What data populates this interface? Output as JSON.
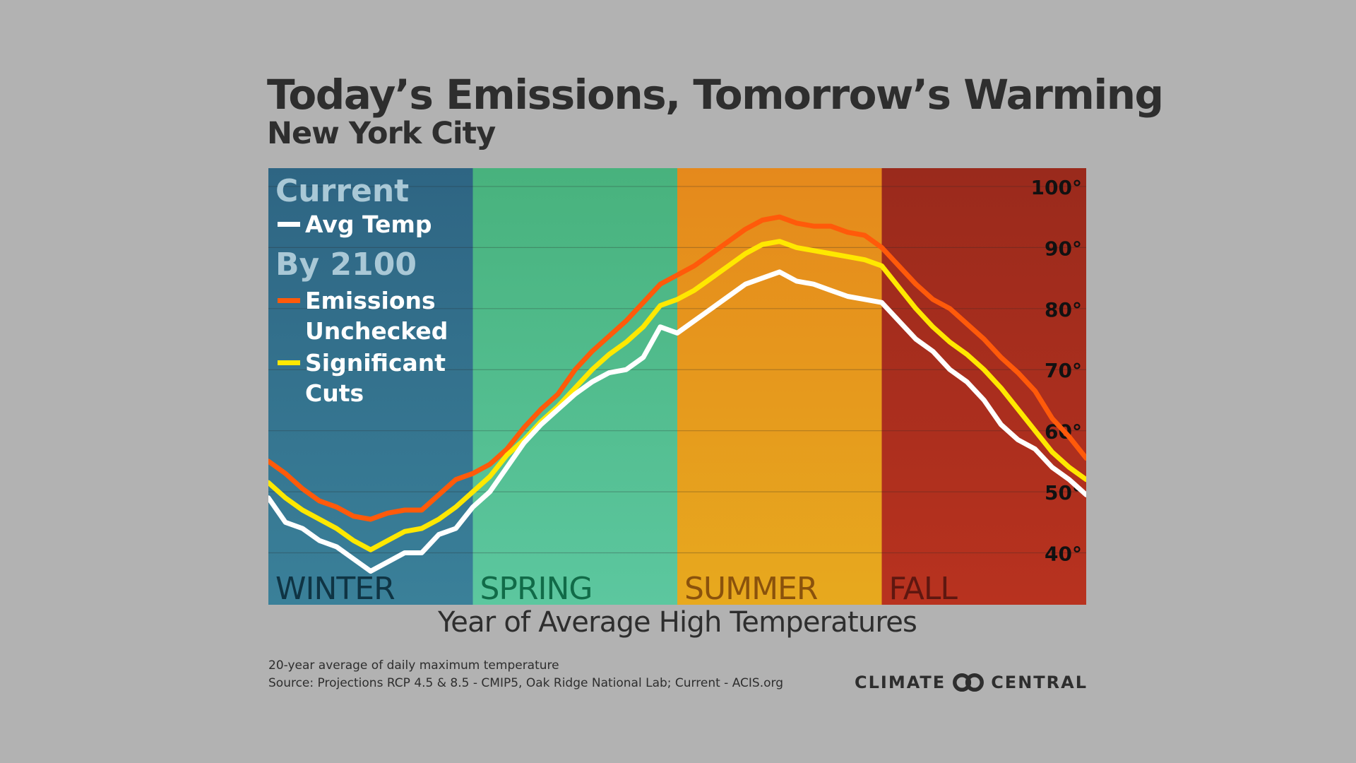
{
  "title": "Today’s Emissions, Tomorrow’s Warming",
  "subtitle": "New York City",
  "footnote_1": "20-year average of daily maximum temperature",
  "footnote_2": "Source: Projections RCP 4.5 & 8.5 - CMIP5, Oak Ridge National Lab; Current - ACIS.org",
  "logo": {
    "left": "CLIMATE",
    "right": "CENTRAL",
    "icon": "linked-circles-icon"
  },
  "legend": {
    "current_heading": "Current",
    "current_item": "Avg Temp",
    "future_heading": "By 2100",
    "unchecked_line1": "Emissions",
    "unchecked_line2": "Unchecked",
    "cuts_line1": "Significant",
    "cuts_line2": "Cuts"
  },
  "colors": {
    "background": "#b2b2b2",
    "avg_temp": "#ffffff",
    "emissions_unchecked": "#ff5a0a",
    "significant_cuts": "#ffe800",
    "legend_heading": "#a9c8d6"
  },
  "chart_data": {
    "type": "line",
    "title": "Today’s Emissions, Tomorrow’s Warming",
    "subtitle": "New York City",
    "xlabel": "Year of Average High Temperatures",
    "ylabel": "",
    "ylim": [
      31.5,
      103
    ],
    "yticks": [
      40,
      50,
      60,
      70,
      80,
      90,
      100
    ],
    "ytick_labels": [
      "40°",
      "50°",
      "60°",
      "70°",
      "80°",
      "90°",
      "100°"
    ],
    "y_axis_side": "right",
    "grid": true,
    "legend_position": "top-left",
    "xlim": [
      0,
      12
    ],
    "seasons": [
      {
        "label": "WINTER",
        "start": 0,
        "end": 3,
        "color_top": "#2e6583",
        "color_bottom": "#3a8099",
        "label_color": "#0f3444"
      },
      {
        "label": "SPRING",
        "start": 3,
        "end": 6,
        "color_top": "#48b27d",
        "color_bottom": "#5cc79f",
        "label_color": "#116b48"
      },
      {
        "label": "SUMMER",
        "start": 6,
        "end": 9,
        "color_top": "#e5891c",
        "color_bottom": "#e7a91e",
        "label_color": "#8a520c"
      },
      {
        "label": "FALL",
        "start": 9,
        "end": 12,
        "color_top": "#9a2a1c",
        "color_bottom": "#b8321f",
        "label_color": "#5e1710"
      }
    ],
    "x": [
      0,
      0.25,
      0.5,
      0.75,
      1,
      1.25,
      1.5,
      1.75,
      2,
      2.25,
      2.5,
      2.75,
      3,
      3.25,
      3.5,
      3.75,
      4,
      4.25,
      4.5,
      4.75,
      5,
      5.25,
      5.5,
      5.75,
      6,
      6.25,
      6.5,
      6.75,
      7,
      7.25,
      7.5,
      7.75,
      8,
      8.25,
      8.5,
      8.75,
      9,
      9.25,
      9.5,
      9.75,
      10,
      10.25,
      10.5,
      10.75,
      11,
      11.25,
      11.5,
      11.75,
      12
    ],
    "series": [
      {
        "name": "Avg Temp",
        "color": "#ffffff",
        "values": [
          49,
          45,
          44,
          42,
          41,
          39,
          37,
          38.5,
          40,
          40,
          43,
          44,
          47.5,
          50,
          54,
          58,
          61,
          63.5,
          66,
          68,
          69.5,
          70,
          72,
          77,
          76,
          78,
          80,
          82,
          84,
          85,
          86,
          84.5,
          84,
          83,
          82,
          81.5,
          81,
          78,
          75,
          73,
          70,
          68,
          65,
          61,
          58.5,
          57,
          54,
          52,
          49.5
        ]
      },
      {
        "name": "Emissions Unchecked",
        "color": "#ff5a0a",
        "values": [
          55,
          53,
          50.5,
          48.5,
          47.5,
          46,
          45.5,
          46.5,
          47,
          47,
          49.5,
          52,
          53,
          54.5,
          57,
          60.5,
          63.5,
          66,
          70,
          73,
          75.5,
          78,
          81,
          84,
          85.5,
          87,
          89,
          91,
          93,
          94.5,
          95,
          94,
          93.5,
          93.5,
          92.5,
          92,
          90,
          87,
          84,
          81.5,
          80,
          77.5,
          75,
          72,
          69.5,
          66.5,
          62,
          59,
          55.5
        ]
      },
      {
        "name": "Significant Cuts",
        "color": "#ffe800",
        "values": [
          51.5,
          49,
          47,
          45.5,
          44,
          42,
          40.5,
          42,
          43.5,
          44,
          45.5,
          47.5,
          50,
          52.5,
          56,
          58.5,
          61.5,
          64,
          67,
          70,
          72.5,
          74.5,
          77,
          80.5,
          81.5,
          83,
          85,
          87,
          89,
          90.5,
          91,
          90,
          89.5,
          89,
          88.5,
          88,
          87,
          83.5,
          80,
          77,
          74.5,
          72.5,
          70,
          67,
          63.5,
          60,
          56.5,
          54,
          52
        ]
      }
    ]
  }
}
